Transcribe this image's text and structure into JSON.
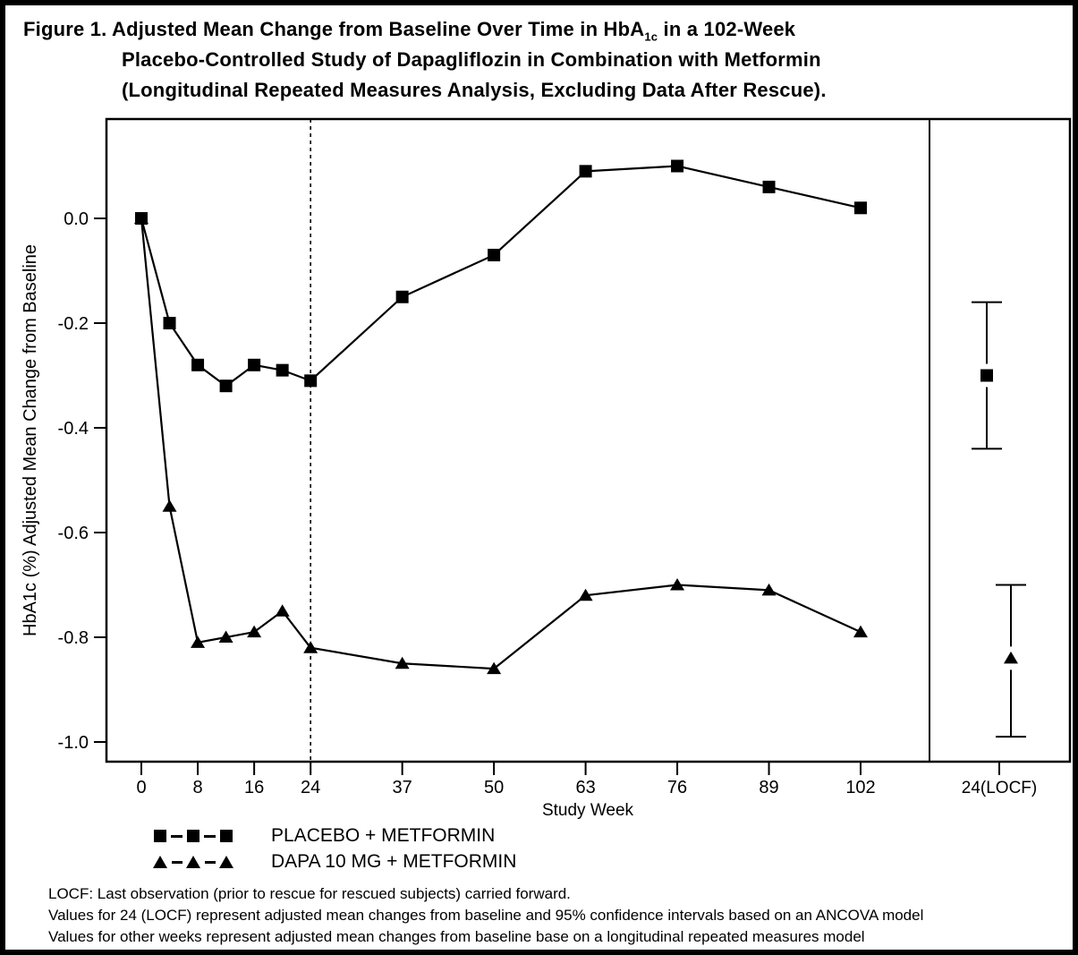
{
  "title": {
    "line1_pre": "Figure 1. Adjusted Mean Change from Baseline Over Time in HbA",
    "line1_sub": "1c",
    "line1_post": " in a 102-Week",
    "line2": "Placebo-Controlled Study of Dapagliflozin in Combination with Metformin",
    "line3": "(Longitudinal Repeated Measures Analysis, Excluding Data After Rescue)."
  },
  "chart_data": {
    "type": "line",
    "title": "Figure 1. Adjusted Mean Change from Baseline Over Time in HbA1c in a 102-Week Placebo-Controlled Study of Dapagliflozin in Combination with Metformin (Longitudinal Repeated Measures Analysis, Excluding Data After Rescue).",
    "xlabel": "Study Week",
    "ylabel": "HbA1c (%) Adjusted Mean Change from Baseline",
    "x": [
      0,
      4,
      8,
      12,
      16,
      20,
      24,
      37,
      50,
      63,
      76,
      89,
      102
    ],
    "x_ticks": [
      0,
      8,
      16,
      24,
      37,
      50,
      63,
      76,
      89,
      102
    ],
    "x_tick_labels": [
      "0",
      "8",
      "16",
      "24",
      "37",
      "50",
      "63",
      "76",
      "89",
      "102"
    ],
    "y_ticks": [
      0.0,
      -0.2,
      -0.4,
      -0.6,
      -0.8,
      -1.0
    ],
    "y_tick_labels": [
      "0.0",
      "-0.2",
      "-0.4",
      "-0.6",
      "-0.8",
      "-1.0"
    ],
    "ylim": [
      -1.04,
      0.19
    ],
    "grid": false,
    "reference_line_x": 24,
    "legend_position": "bottom-left",
    "series": [
      {
        "name": "PLACEBO + METFORMIN",
        "marker": "square",
        "values": [
          0.0,
          -0.2,
          -0.28,
          -0.32,
          -0.28,
          -0.29,
          -0.31,
          -0.15,
          -0.07,
          0.09,
          0.1,
          0.06,
          0.02
        ]
      },
      {
        "name": "DAPA 10 MG + METFORMIN",
        "marker": "triangle",
        "values": [
          0.0,
          -0.55,
          -0.81,
          -0.8,
          -0.79,
          -0.75,
          -0.82,
          -0.85,
          -0.86,
          -0.72,
          -0.7,
          -0.71,
          -0.79
        ]
      }
    ],
    "locf_panel": {
      "label": "24(LOCF)",
      "points": [
        {
          "series": "PLACEBO + METFORMIN",
          "marker": "square",
          "mean": -0.3,
          "ci_low": -0.44,
          "ci_high": -0.16
        },
        {
          "series": "DAPA 10 MG + METFORMIN",
          "marker": "triangle",
          "mean": -0.84,
          "ci_low": -0.99,
          "ci_high": -0.7
        }
      ]
    },
    "line_color": "#000000",
    "background_color": "#ffffff"
  },
  "footnotes": [
    "LOCF: Last observation (prior to rescue for rescued subjects) carried forward.",
    "Values for 24 (LOCF) represent adjusted mean changes from baseline and 95% confidence intervals based on an ANCOVA model",
    "Values for other weeks represent adjusted mean changes from baseline base on a longitudinal repeated measures model"
  ]
}
